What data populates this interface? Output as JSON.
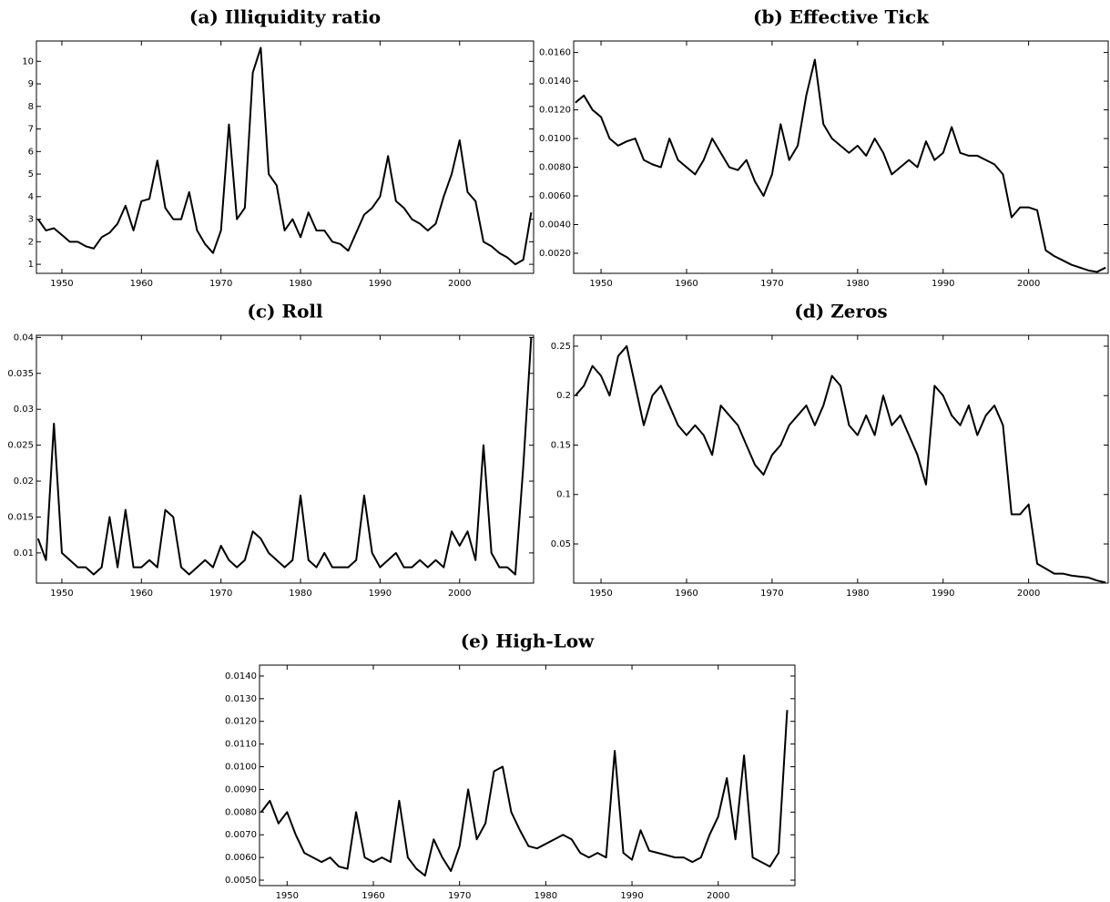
{
  "chart_data": [
    {
      "type": "line",
      "title": "(a) Illiquidity ratio",
      "color": "#000000",
      "x": [
        1947,
        1948,
        1949,
        1950,
        1951,
        1952,
        1953,
        1954,
        1955,
        1956,
        1957,
        1958,
        1959,
        1960,
        1961,
        1962,
        1963,
        1964,
        1965,
        1966,
        1967,
        1968,
        1969,
        1970,
        1971,
        1972,
        1973,
        1974,
        1975,
        1976,
        1977,
        1978,
        1979,
        1980,
        1981,
        1982,
        1983,
        1984,
        1985,
        1986,
        1987,
        1988,
        1989,
        1990,
        1991,
        1992,
        1993,
        1994,
        1995,
        1996,
        1997,
        1998,
        1999,
        2000,
        2001,
        2002,
        2003,
        2004,
        2005,
        2006,
        2007,
        2008,
        2009
      ],
      "values": [
        3.0,
        2.5,
        2.6,
        2.3,
        2.0,
        2.0,
        1.8,
        1.7,
        2.2,
        2.4,
        2.8,
        3.6,
        2.5,
        3.8,
        3.9,
        5.6,
        3.5,
        3.0,
        3.0,
        4.2,
        2.5,
        1.9,
        1.5,
        2.5,
        7.2,
        3.0,
        3.5,
        9.5,
        10.6,
        5.0,
        4.5,
        2.5,
        3.0,
        2.2,
        3.3,
        2.5,
        2.5,
        2.0,
        1.9,
        1.6,
        2.4,
        3.2,
        3.5,
        4.0,
        5.8,
        3.8,
        3.5,
        3.0,
        2.8,
        2.5,
        2.8,
        4.0,
        5.0,
        6.5,
        4.2,
        3.8,
        2.0,
        1.8,
        1.5,
        1.3,
        1.0,
        1.2,
        3.3
      ],
      "xlim": [
        1946.8,
        2009.3
      ],
      "xticks": [
        1950,
        1960,
        1970,
        1980,
        1990,
        2000
      ],
      "ylim": [
        0.6,
        10.9
      ],
      "yticks": [
        1,
        2,
        3,
        4,
        5,
        6,
        7,
        8,
        9,
        10
      ]
    },
    {
      "type": "line",
      "title": "(b) Effective Tick",
      "color": "#000000",
      "x": [
        1947,
        1948,
        1949,
        1950,
        1951,
        1952,
        1953,
        1954,
        1955,
        1956,
        1957,
        1958,
        1959,
        1960,
        1961,
        1962,
        1963,
        1964,
        1965,
        1966,
        1967,
        1968,
        1969,
        1970,
        1971,
        1972,
        1973,
        1974,
        1975,
        1976,
        1977,
        1978,
        1979,
        1980,
        1981,
        1982,
        1983,
        1984,
        1985,
        1986,
        1987,
        1988,
        1989,
        1990,
        1991,
        1992,
        1993,
        1994,
        1995,
        1996,
        1997,
        1998,
        1999,
        2000,
        2001,
        2002,
        2003,
        2004,
        2005,
        2006,
        2007,
        2008,
        2009
      ],
      "values": [
        0.0125,
        0.013,
        0.012,
        0.0115,
        0.01,
        0.0095,
        0.0098,
        0.01,
        0.0085,
        0.0082,
        0.008,
        0.01,
        0.0085,
        0.008,
        0.0075,
        0.0085,
        0.01,
        0.009,
        0.008,
        0.0078,
        0.0085,
        0.007,
        0.006,
        0.0075,
        0.011,
        0.0085,
        0.0095,
        0.013,
        0.0155,
        0.011,
        0.01,
        0.0095,
        0.009,
        0.0095,
        0.0088,
        0.01,
        0.009,
        0.0075,
        0.008,
        0.0085,
        0.008,
        0.0098,
        0.0085,
        0.009,
        0.0108,
        0.009,
        0.0088,
        0.0088,
        0.0085,
        0.0082,
        0.0075,
        0.0045,
        0.0052,
        0.0052,
        0.005,
        0.0022,
        0.0018,
        0.0015,
        0.0012,
        0.001,
        0.0008,
        0.0007,
        0.001
      ],
      "xlim": [
        1946.8,
        2009.3
      ],
      "xticks": [
        1950,
        1960,
        1970,
        1980,
        1990,
        2000
      ],
      "ylim": [
        0.0006,
        0.0168
      ],
      "yticks": [
        {
          "value": 0.002,
          "label": "0.0020"
        },
        {
          "value": 0.004,
          "label": "0.0040"
        },
        {
          "value": 0.006,
          "label": "0.0060"
        },
        {
          "value": 0.008,
          "label": "0.0080"
        },
        {
          "value": 0.01,
          "label": "0.0100"
        },
        {
          "value": 0.012,
          "label": "0.0120"
        },
        {
          "value": 0.014,
          "label": "0.0140"
        },
        {
          "value": 0.016,
          "label": "0.0160"
        }
      ]
    },
    {
      "type": "line",
      "title": "(c) Roll",
      "color": "#000000",
      "x": [
        1947,
        1948,
        1949,
        1950,
        1951,
        1952,
        1953,
        1954,
        1955,
        1956,
        1957,
        1958,
        1959,
        1960,
        1961,
        1962,
        1963,
        1964,
        1965,
        1966,
        1967,
        1968,
        1969,
        1970,
        1971,
        1972,
        1973,
        1974,
        1975,
        1976,
        1977,
        1978,
        1979,
        1980,
        1981,
        1982,
        1983,
        1984,
        1985,
        1986,
        1987,
        1988,
        1989,
        1990,
        1991,
        1992,
        1993,
        1994,
        1995,
        1996,
        1997,
        1998,
        1999,
        2000,
        2001,
        2002,
        2003,
        2004,
        2005,
        2006,
        2007,
        2008,
        2009
      ],
      "values": [
        0.012,
        0.009,
        0.028,
        0.01,
        0.009,
        0.008,
        0.008,
        0.007,
        0.008,
        0.015,
        0.008,
        0.016,
        0.008,
        0.008,
        0.009,
        0.008,
        0.016,
        0.015,
        0.008,
        0.007,
        0.008,
        0.009,
        0.008,
        0.011,
        0.009,
        0.008,
        0.009,
        0.013,
        0.012,
        0.01,
        0.009,
        0.008,
        0.009,
        0.018,
        0.009,
        0.008,
        0.01,
        0.008,
        0.008,
        0.008,
        0.009,
        0.018,
        0.01,
        0.008,
        0.009,
        0.01,
        0.008,
        0.008,
        0.009,
        0.008,
        0.009,
        0.008,
        0.013,
        0.011,
        0.013,
        0.009,
        0.025,
        0.01,
        0.008,
        0.008,
        0.007,
        0.022,
        0.04
      ],
      "xlim": [
        1946.8,
        2009.3
      ],
      "xticks": [
        1950,
        1960,
        1970,
        1980,
        1990,
        2000
      ],
      "ylim": [
        0.0058,
        0.0403
      ],
      "yticks": [
        0.01,
        0.015,
        0.02,
        0.025,
        0.03,
        0.035,
        0.04
      ]
    },
    {
      "type": "line",
      "title": "(d) Zeros",
      "color": "#000000",
      "x": [
        1947,
        1948,
        1949,
        1950,
        1951,
        1952,
        1953,
        1954,
        1955,
        1956,
        1957,
        1958,
        1959,
        1960,
        1961,
        1962,
        1963,
        1964,
        1965,
        1966,
        1967,
        1968,
        1969,
        1970,
        1971,
        1972,
        1973,
        1974,
        1975,
        1976,
        1977,
        1978,
        1979,
        1980,
        1981,
        1982,
        1983,
        1984,
        1985,
        1986,
        1987,
        1988,
        1989,
        1990,
        1991,
        1992,
        1993,
        1994,
        1995,
        1996,
        1997,
        1998,
        1999,
        2000,
        2001,
        2002,
        2003,
        2004,
        2005,
        2006,
        2007,
        2008,
        2009
      ],
      "values": [
        0.2,
        0.21,
        0.23,
        0.22,
        0.2,
        0.24,
        0.25,
        0.21,
        0.17,
        0.2,
        0.21,
        0.19,
        0.17,
        0.16,
        0.17,
        0.16,
        0.14,
        0.19,
        0.18,
        0.17,
        0.15,
        0.13,
        0.12,
        0.14,
        0.15,
        0.17,
        0.18,
        0.19,
        0.17,
        0.19,
        0.22,
        0.21,
        0.17,
        0.16,
        0.18,
        0.16,
        0.2,
        0.17,
        0.18,
        0.16,
        0.14,
        0.11,
        0.21,
        0.2,
        0.18,
        0.17,
        0.19,
        0.16,
        0.18,
        0.19,
        0.17,
        0.08,
        0.08,
        0.09,
        0.03,
        0.025,
        0.02,
        0.02,
        0.018,
        0.017,
        0.016,
        0.013,
        0.011
      ],
      "xlim": [
        1946.8,
        2009.3
      ],
      "xticks": [
        1950,
        1960,
        1970,
        1980,
        1990,
        2000
      ],
      "ylim": [
        0.0104,
        0.261
      ],
      "yticks": [
        0.05,
        0.1,
        0.15,
        0.2,
        0.25
      ]
    },
    {
      "type": "line",
      "title": "(e) High-Low",
      "color": "#000000",
      "x": [
        1947,
        1948,
        1949,
        1950,
        1951,
        1952,
        1953,
        1954,
        1955,
        1956,
        1957,
        1958,
        1959,
        1960,
        1961,
        1962,
        1963,
        1964,
        1965,
        1966,
        1967,
        1968,
        1969,
        1970,
        1971,
        1972,
        1973,
        1974,
        1975,
        1976,
        1977,
        1978,
        1979,
        1980,
        1981,
        1982,
        1983,
        1984,
        1985,
        1986,
        1987,
        1988,
        1989,
        1990,
        1991,
        1992,
        1993,
        1994,
        1995,
        1996,
        1997,
        1998,
        1999,
        2000,
        2001,
        2002,
        2003,
        2004,
        2005,
        2006,
        2007,
        2008
      ],
      "values": [
        0.008,
        0.0085,
        0.0075,
        0.008,
        0.007,
        0.0062,
        0.006,
        0.0058,
        0.006,
        0.0056,
        0.0055,
        0.008,
        0.006,
        0.0058,
        0.006,
        0.0058,
        0.0085,
        0.006,
        0.0055,
        0.0052,
        0.0068,
        0.006,
        0.0054,
        0.0065,
        0.009,
        0.0068,
        0.0075,
        0.0098,
        0.01,
        0.008,
        0.0072,
        0.0065,
        0.0064,
        0.0066,
        0.0068,
        0.007,
        0.0068,
        0.0062,
        0.006,
        0.0062,
        0.006,
        0.0107,
        0.0062,
        0.0059,
        0.0072,
        0.0063,
        0.0062,
        0.0061,
        0.006,
        0.006,
        0.0058,
        0.006,
        0.007,
        0.0078,
        0.0095,
        0.0068,
        0.0105,
        0.006,
        0.0058,
        0.0056,
        0.0062,
        0.0125
      ],
      "xlim": [
        1946.8,
        2008.9
      ],
      "xticks": [
        1950,
        1960,
        1970,
        1980,
        1990,
        2000
      ],
      "ylim": [
        0.00476,
        0.01448
      ],
      "yticks": [
        {
          "value": 0.005,
          "label": "0.0050"
        },
        {
          "value": 0.006,
          "label": "0.0060"
        },
        {
          "value": 0.007,
          "label": "0.0070"
        },
        {
          "value": 0.008,
          "label": "0.0080"
        },
        {
          "value": 0.009,
          "label": "0.0090"
        },
        {
          "value": 0.01,
          "label": "0.0100"
        },
        {
          "value": 0.011,
          "label": "0.0110"
        },
        {
          "value": 0.012,
          "label": "0.0120"
        },
        {
          "value": 0.013,
          "label": "0.0130"
        },
        {
          "value": 0.014,
          "label": "0.0140"
        }
      ]
    }
  ]
}
